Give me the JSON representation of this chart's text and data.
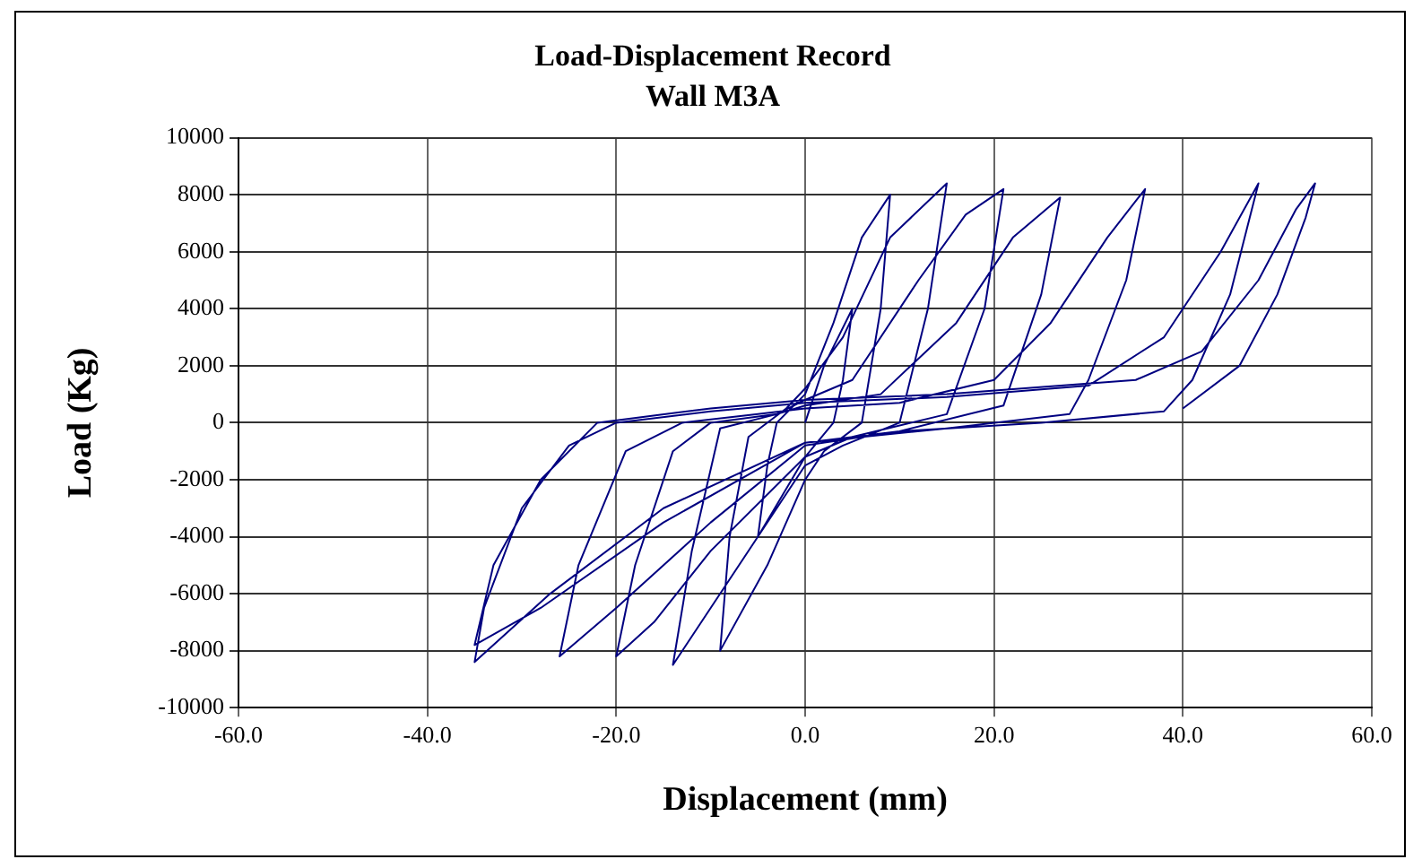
{
  "chart_data": {
    "type": "line",
    "title": "Load-Displacement Record",
    "subtitle": "Wall M3A",
    "xlabel": "Displacement (mm)",
    "ylabel": "Load (Kg)",
    "xlim": [
      -60,
      60
    ],
    "ylim": [
      -10000,
      10000
    ],
    "xticks": [
      {
        "value": -60,
        "label": "-60.0"
      },
      {
        "value": -40,
        "label": "-40.0"
      },
      {
        "value": -20,
        "label": "-20.0"
      },
      {
        "value": 0,
        "label": "0.0"
      },
      {
        "value": 20,
        "label": "20.0"
      },
      {
        "value": 40,
        "label": "40.0"
      },
      {
        "value": 60,
        "label": "60.0"
      }
    ],
    "yticks": [
      -10000,
      -8000,
      -6000,
      -4000,
      -2000,
      0,
      2000,
      4000,
      6000,
      8000,
      10000
    ],
    "grid": true,
    "legend": false,
    "marker": "none",
    "line_style": "solid",
    "x": [
      0,
      2,
      5,
      4,
      3,
      0,
      -5,
      -4,
      -3,
      0,
      3,
      6,
      9,
      8,
      6,
      2,
      0,
      -4,
      -9,
      -8,
      -6,
      -2,
      0,
      4,
      9,
      15,
      13,
      10,
      4,
      0,
      -7,
      -14,
      -12,
      -9,
      -3,
      0,
      5,
      12,
      17,
      21,
      19,
      15,
      5,
      0,
      -10,
      -16,
      -20,
      -18,
      -14,
      -10,
      -3,
      0,
      8,
      16,
      22,
      27,
      25,
      21,
      10,
      0,
      -10,
      -20,
      -26,
      -24,
      -19,
      -13,
      -5,
      0,
      10,
      20,
      26,
      32,
      36,
      34,
      30,
      28,
      15,
      0,
      -15,
      -27,
      -35,
      -34,
      -30,
      -25,
      -20,
      -10,
      0,
      15,
      30,
      38,
      44,
      48,
      45,
      41,
      38,
      25,
      10,
      0,
      -15,
      -28,
      -35,
      -33,
      -28,
      -22,
      -10,
      0,
      15,
      35,
      42,
      48,
      52,
      54,
      53,
      50,
      46,
      40
    ],
    "series": [
      {
        "color": "#000080",
        "values": [
          0,
          2000,
          4000,
          1500,
          0,
          -1200,
          -4000,
          -1500,
          0,
          1000,
          3500,
          6500,
          8000,
          4000,
          0,
          -1000,
          -2000,
          -5000,
          -8000,
          -4000,
          -500,
          500,
          1200,
          3000,
          6500,
          8400,
          4000,
          0,
          -800,
          -1500,
          -5000,
          -8500,
          -4500,
          -200,
          300,
          800,
          1500,
          5000,
          7300,
          8200,
          4000,
          300,
          -500,
          -1200,
          -4500,
          -7000,
          -8200,
          -5000,
          -1000,
          0,
          300,
          600,
          1000,
          3500,
          6500,
          7900,
          4500,
          600,
          -300,
          -800,
          -3500,
          -6500,
          -8200,
          -5000,
          -1000,
          0,
          300,
          500,
          700,
          1500,
          3500,
          6500,
          8200,
          5000,
          1500,
          300,
          -200,
          -700,
          -3000,
          -6000,
          -8400,
          -6500,
          -3000,
          -800,
          0,
          400,
          700,
          900,
          1300,
          3000,
          6000,
          8400,
          4500,
          1500,
          400,
          0,
          -300,
          -700,
          -3500,
          -6500,
          -7800,
          -5000,
          -2000,
          0,
          500,
          800,
          1000,
          1500,
          2500,
          5000,
          7500,
          8400,
          7200,
          4500,
          2000,
          500
        ]
      }
    ]
  }
}
